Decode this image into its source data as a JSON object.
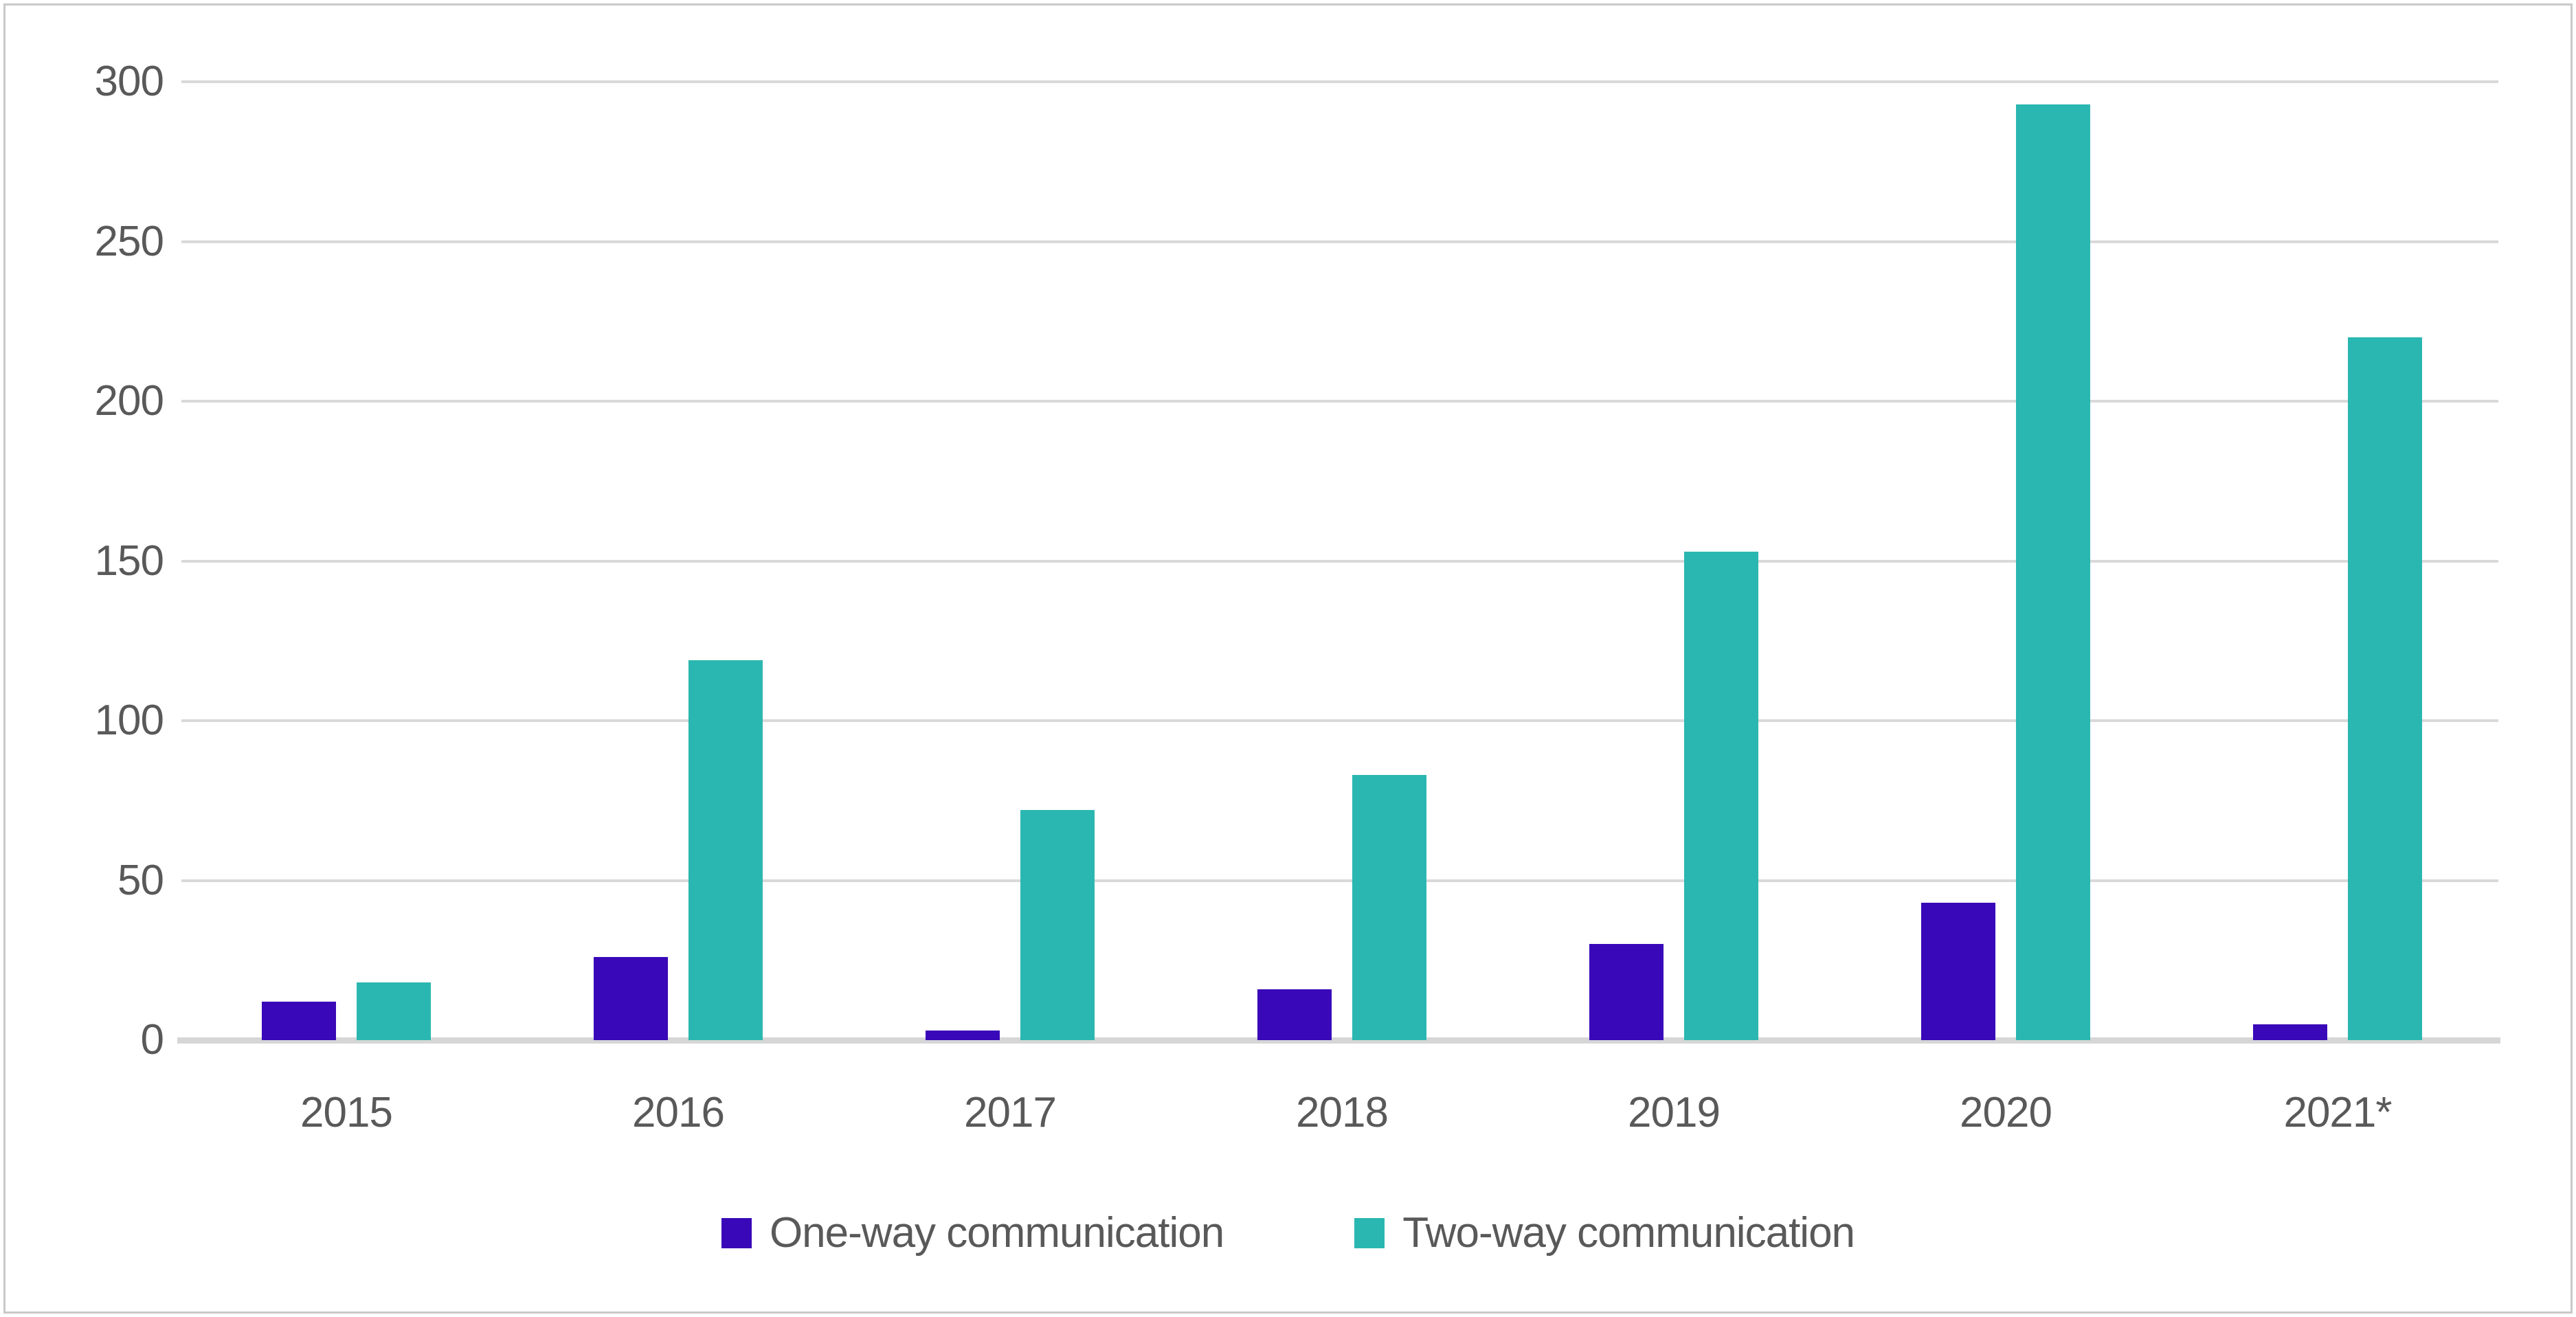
{
  "chart_data": {
    "type": "bar",
    "title": "",
    "categories": [
      "2015",
      "2016",
      "2017",
      "2018",
      "2019",
      "2020",
      "2021*"
    ],
    "series": [
      {
        "name": "One-way communication",
        "color": "#3908b8",
        "values": [
          12,
          26,
          3,
          16,
          30,
          43,
          5
        ]
      },
      {
        "name": "Two-way communication",
        "color": "#2bb7b1",
        "values": [
          18,
          119,
          72,
          83,
          153,
          293,
          220
        ]
      }
    ],
    "ylim": [
      0,
      300
    ],
    "yticks": [
      0,
      50,
      100,
      150,
      200,
      250,
      300
    ],
    "grid": true,
    "legend_position": "bottom"
  },
  "colors": {
    "text": "#595959",
    "gridline": "#d9d9d9",
    "axis_line": "#d6d6d6",
    "frame_border": "#c9c9c9",
    "background": "#ffffff"
  }
}
